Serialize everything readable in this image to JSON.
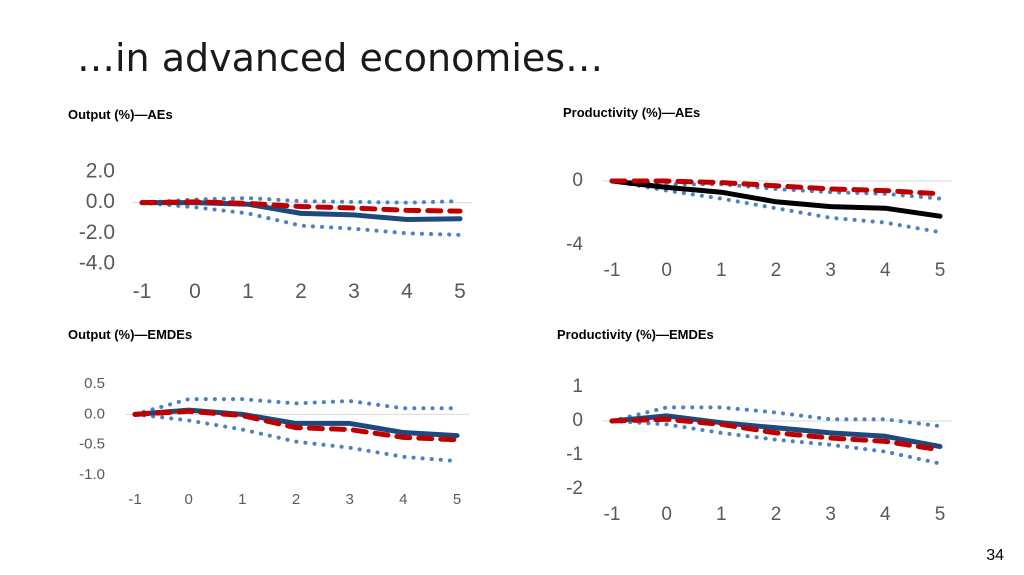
{
  "slide": {
    "title": "…in advanced economies…",
    "page_number": "34"
  },
  "colors": {
    "median_navy": "#1f497d",
    "median_black": "#000000",
    "mean_red": "#c00000",
    "band_blue": "#4f81bd",
    "axis_line": "#d9d9d9"
  },
  "chart_data": [
    {
      "type": "line",
      "title": "Output (%)—AEs",
      "x": [
        -1,
        0,
        1,
        2,
        3,
        4,
        5
      ],
      "xticks": [
        "-1",
        "0",
        "1",
        "2",
        "3",
        "4",
        "5"
      ],
      "yticks": [
        "2.0",
        "0.0",
        "-2.0",
        "-4.0"
      ],
      "ylim": [
        -4,
        2
      ],
      "series": [
        {
          "style": "solid",
          "color": "#1f497d",
          "values": [
            0,
            0,
            -0.1,
            -0.7,
            -0.8,
            -1.1,
            -1.05
          ]
        },
        {
          "style": "dashed",
          "color": "#c00000",
          "values": [
            0,
            0.05,
            -0.05,
            -0.25,
            -0.35,
            -0.5,
            -0.55
          ]
        },
        {
          "style": "dotted",
          "color": "#4f81bd",
          "values": [
            0,
            0.2,
            0.3,
            0.1,
            0.05,
            0,
            0.1
          ]
        },
        {
          "style": "dotted",
          "color": "#4f81bd",
          "values": [
            0,
            -0.3,
            -0.7,
            -1.5,
            -1.7,
            -2.0,
            -2.1
          ]
        }
      ]
    },
    {
      "type": "line",
      "title": "Productivity (%)—AEs",
      "x": [
        -1,
        0,
        1,
        2,
        3,
        4,
        5
      ],
      "xticks": [
        "-1",
        "0",
        "1",
        "2",
        "3",
        "4",
        "5"
      ],
      "yticks": [
        "0",
        "-4"
      ],
      "ylim": [
        -4,
        0
      ],
      "series": [
        {
          "style": "solid",
          "color": "#000000",
          "values": [
            0,
            -0.4,
            -0.7,
            -1.3,
            -1.6,
            -1.7,
            -2.2
          ]
        },
        {
          "style": "dashed",
          "color": "#c00000",
          "values": [
            0,
            0,
            -0.1,
            -0.3,
            -0.5,
            -0.6,
            -0.8
          ]
        },
        {
          "style": "dotted",
          "color": "#4f81bd",
          "values": [
            0,
            -0.2,
            -0.2,
            -0.5,
            -0.7,
            -0.8,
            -1.1
          ]
        },
        {
          "style": "dotted",
          "color": "#4f81bd",
          "values": [
            0,
            -0.6,
            -1.1,
            -1.7,
            -2.3,
            -2.6,
            -3.2
          ]
        }
      ]
    },
    {
      "type": "line",
      "title": "Output (%)—EMDEs",
      "x": [
        -1,
        0,
        1,
        2,
        3,
        4,
        5
      ],
      "xticks": [
        "-1",
        "0",
        "1",
        "2",
        "3",
        "4",
        "5"
      ],
      "yticks": [
        "0.5",
        "0.0",
        "-0.5",
        "-1.0"
      ],
      "ylim": [
        -1.0,
        0.5
      ],
      "series": [
        {
          "style": "solid",
          "color": "#1f497d",
          "values": [
            0,
            0.07,
            0,
            -0.15,
            -0.15,
            -0.3,
            -0.35
          ]
        },
        {
          "style": "dashed",
          "color": "#c00000",
          "values": [
            0,
            0.05,
            -0.02,
            -0.22,
            -0.25,
            -0.38,
            -0.42
          ]
        },
        {
          "style": "dotted",
          "color": "#4f81bd",
          "values": [
            0,
            0.25,
            0.25,
            0.18,
            0.22,
            0.1,
            0.1
          ]
        },
        {
          "style": "dotted",
          "color": "#4f81bd",
          "values": [
            0,
            -0.1,
            -0.25,
            -0.45,
            -0.55,
            -0.7,
            -0.77
          ]
        }
      ]
    },
    {
      "type": "line",
      "title": "Productivity (%)—EMDEs",
      "x": [
        -1,
        0,
        1,
        2,
        3,
        4,
        5
      ],
      "xticks": [
        "-1",
        "0",
        "1",
        "2",
        "3",
        "4",
        "5"
      ],
      "yticks": [
        "1",
        "0",
        "-1",
        "-2"
      ],
      "ylim": [
        -2,
        1
      ],
      "series": [
        {
          "style": "solid",
          "color": "#1f497d",
          "values": [
            0,
            0.15,
            -0.05,
            -0.2,
            -0.35,
            -0.45,
            -0.75
          ]
        },
        {
          "style": "dashed",
          "color": "#c00000",
          "values": [
            0,
            0.05,
            -0.1,
            -0.35,
            -0.5,
            -0.6,
            -0.85
          ]
        },
        {
          "style": "dotted",
          "color": "#4f81bd",
          "values": [
            0,
            0.4,
            0.4,
            0.25,
            0.05,
            0.05,
            -0.15
          ]
        },
        {
          "style": "dotted",
          "color": "#4f81bd",
          "values": [
            0,
            -0.1,
            -0.35,
            -0.55,
            -0.7,
            -0.9,
            -1.25
          ]
        }
      ]
    }
  ]
}
